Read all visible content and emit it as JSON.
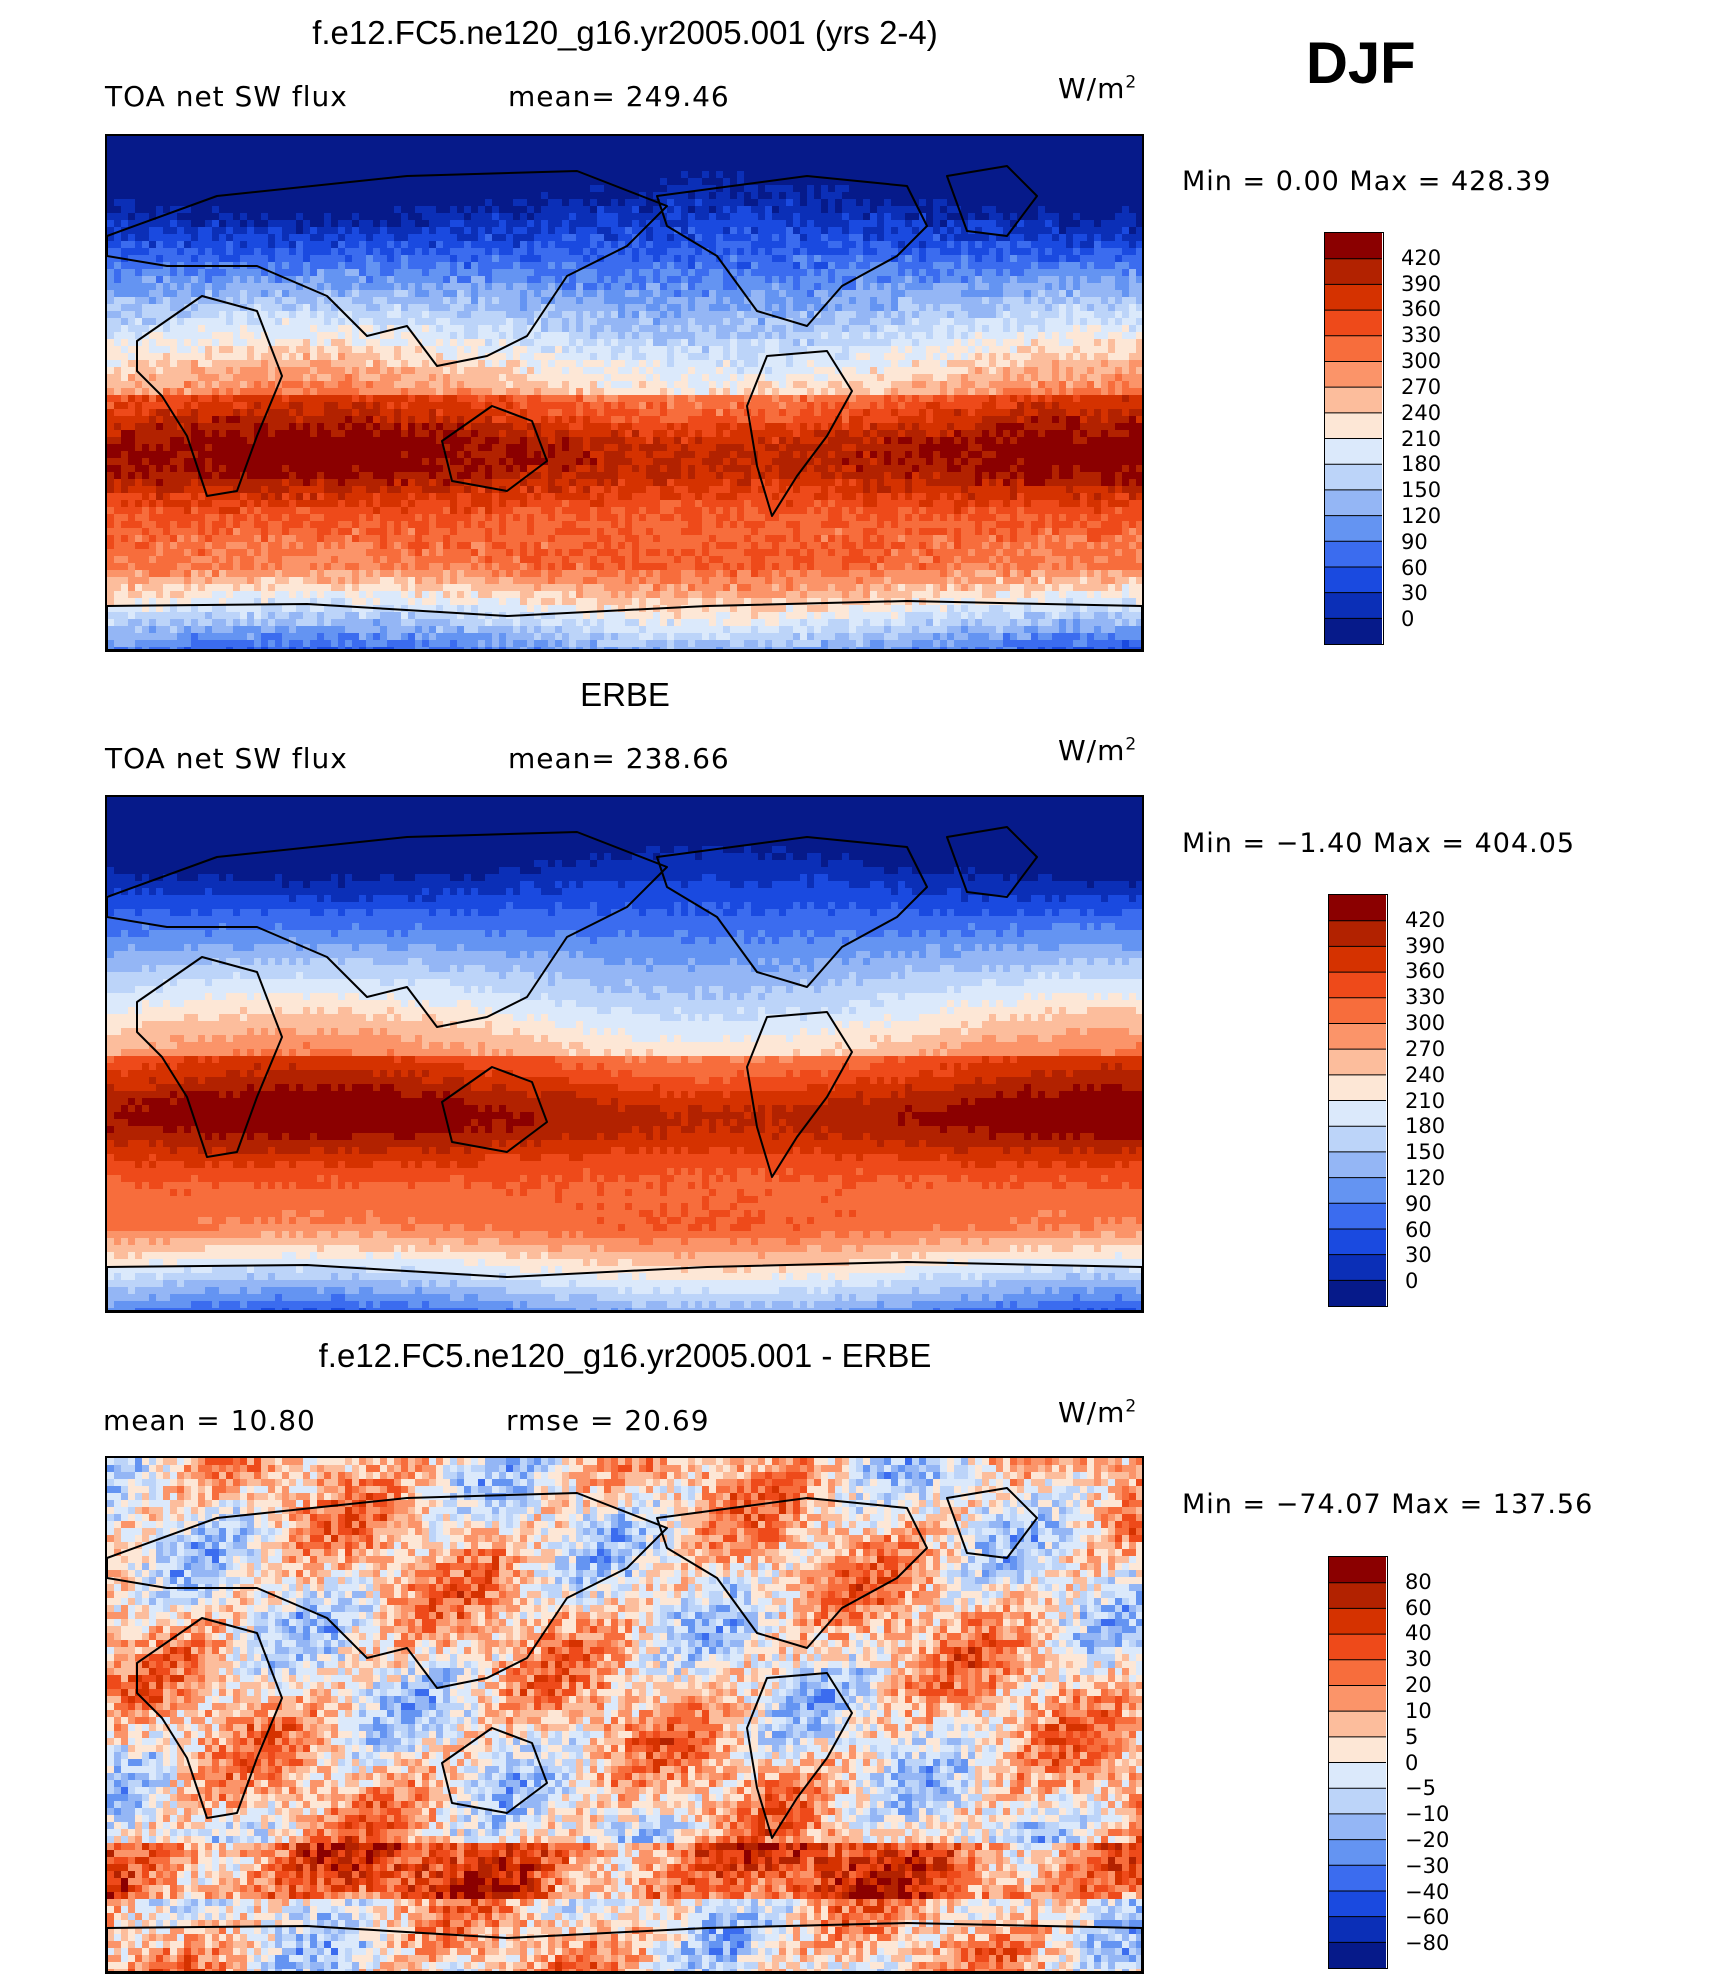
{
  "figure": {
    "season": "DJF"
  },
  "panels": [
    {
      "title": "f.e12.FC5.ne120_g16.yr2005.001 (yrs 2-4)",
      "left_text": "TOA net SW flux",
      "center_text": "mean= 249.46",
      "units_base": "W/m",
      "units_sup": "2",
      "minmax": "Min =    0.00 Max = 428.39",
      "colorbar": {
        "labels": [
          "420",
          "390",
          "360",
          "330",
          "300",
          "270",
          "240",
          "210",
          "180",
          "150",
          "120",
          "90",
          "60",
          "30",
          "0"
        ],
        "colors": [
          "#8b0000",
          "#b22200",
          "#d53200",
          "#ee4a1a",
          "#f76d3c",
          "#fb9469",
          "#fcbd9c",
          "#fde7d6",
          "#dbe9fb",
          "#bcd4f9",
          "#94b6f5",
          "#6494f2",
          "#3b6cef",
          "#1a4ae0",
          "#0b2fb7",
          "#061a8a"
        ]
      },
      "map": {
        "kind": "absolute"
      }
    },
    {
      "title": "ERBE",
      "left_text": "TOA net SW flux",
      "center_text": "mean= 238.66",
      "units_base": "W/m",
      "units_sup": "2",
      "minmax": "Min =  −1.40 Max = 404.05",
      "colorbar": {
        "labels": [
          "420",
          "390",
          "360",
          "330",
          "300",
          "270",
          "240",
          "210",
          "180",
          "150",
          "120",
          "90",
          "60",
          "30",
          "0"
        ],
        "colors": [
          "#8b0000",
          "#b22200",
          "#d53200",
          "#ee4a1a",
          "#f76d3c",
          "#fb9469",
          "#fcbd9c",
          "#fde7d6",
          "#dbe9fb",
          "#bcd4f9",
          "#94b6f5",
          "#6494f2",
          "#3b6cef",
          "#1a4ae0",
          "#0b2fb7",
          "#061a8a"
        ]
      },
      "map": {
        "kind": "absolute"
      }
    },
    {
      "title": "f.e12.FC5.ne120_g16.yr2005.001 - ERBE",
      "left_text": "mean =   10.80",
      "center_text": "rmse =   20.69",
      "units_base": "W/m",
      "units_sup": "2",
      "minmax": "Min = −74.07 Max = 137.56",
      "colorbar": {
        "labels": [
          "80",
          "60",
          "40",
          "30",
          "20",
          "10",
          "5",
          "0",
          "−5",
          "−10",
          "−20",
          "−30",
          "−40",
          "−60",
          "−80"
        ],
        "colors": [
          "#8b0000",
          "#b22200",
          "#d53200",
          "#ee4a1a",
          "#f76d3c",
          "#fb9469",
          "#fcbd9c",
          "#fde7d6",
          "#dbe9fb",
          "#bcd4f9",
          "#94b6f5",
          "#6494f2",
          "#3b6cef",
          "#1a4ae0",
          "#0b2fb7",
          "#061a8a"
        ]
      },
      "map": {
        "kind": "difference"
      }
    }
  ],
  "chart_data": [
    {
      "type": "heatmap",
      "title": "f.e12.FC5.ne120_g16.yr2005.001 (yrs 2-4)",
      "variable": "TOA net SW flux",
      "units": "W/m2",
      "mean": 249.46,
      "min": 0.0,
      "max": 428.39,
      "contour_levels": [
        0,
        30,
        60,
        90,
        120,
        150,
        180,
        210,
        240,
        270,
        300,
        330,
        360,
        390,
        420
      ],
      "season": "DJF"
    },
    {
      "type": "heatmap",
      "title": "ERBE",
      "variable": "TOA net SW flux",
      "units": "W/m2",
      "mean": 238.66,
      "min": -1.4,
      "max": 404.05,
      "contour_levels": [
        0,
        30,
        60,
        90,
        120,
        150,
        180,
        210,
        240,
        270,
        300,
        330,
        360,
        390,
        420
      ],
      "season": "DJF"
    },
    {
      "type": "heatmap",
      "title": "f.e12.FC5.ne120_g16.yr2005.001 - ERBE",
      "units": "W/m2",
      "mean": 10.8,
      "rmse": 20.69,
      "min": -74.07,
      "max": 137.56,
      "contour_levels": [
        -80,
        -60,
        -40,
        -30,
        -20,
        -10,
        -5,
        0,
        5,
        10,
        20,
        30,
        40,
        60,
        80
      ],
      "season": "DJF"
    }
  ]
}
